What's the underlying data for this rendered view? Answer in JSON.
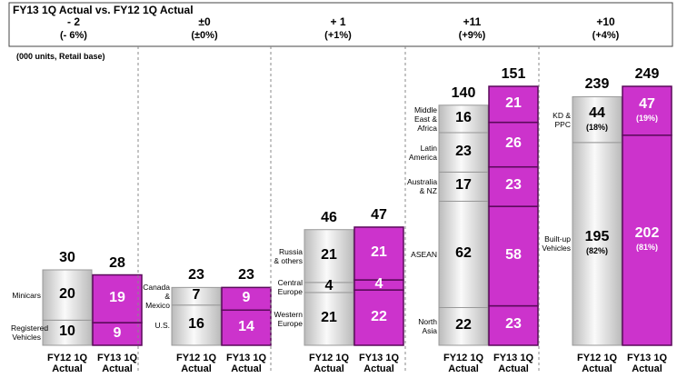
{
  "title": "FY13 1Q Actual vs. FY12 1Q Actual",
  "note": "(000 units, Retail base)",
  "chart_data": [
    {
      "type": "bar",
      "stacked": true,
      "change": "- 2",
      "change_pct": "(- 6%)",
      "ylim": [
        0,
        103
      ],
      "categories": [
        "FY12 1Q Actual",
        "FY13 1Q Actual"
      ],
      "colors": [
        "#d6d6d6",
        "#cc33cc"
      ],
      "totals": [
        30,
        28
      ],
      "series": [
        {
          "name": "Registered Vehicles",
          "values": [
            10,
            9
          ]
        },
        {
          "name": "Minicars",
          "values": [
            20,
            19
          ]
        }
      ]
    },
    {
      "type": "bar",
      "stacked": true,
      "change": "±0",
      "change_pct": "(±0%)",
      "ylim": [
        0,
        103
      ],
      "categories": [
        "FY12 1Q Actual",
        "FY13 1Q Actual"
      ],
      "colors": [
        "#d6d6d6",
        "#cc33cc"
      ],
      "totals": [
        23,
        23
      ],
      "series": [
        {
          "name": "U.S.",
          "values": [
            16,
            14
          ]
        },
        {
          "name": "Canada & Mexico",
          "values": [
            7,
            9
          ]
        }
      ]
    },
    {
      "type": "bar",
      "stacked": true,
      "change": "+ 1",
      "change_pct": "(+1%)",
      "ylim": [
        0,
        103
      ],
      "categories": [
        "FY12 1Q Actual",
        "FY13 1Q Actual"
      ],
      "colors": [
        "#d6d6d6",
        "#cc33cc"
      ],
      "totals": [
        46,
        47
      ],
      "series": [
        {
          "name": "Western Europe",
          "values": [
            21,
            22
          ]
        },
        {
          "name": "Central Europe",
          "values": [
            4,
            4
          ]
        },
        {
          "name": "Russia & others",
          "values": [
            21,
            21
          ]
        }
      ]
    },
    {
      "type": "bar",
      "stacked": true,
      "change": "+11",
      "change_pct": "(+9%)",
      "ylim": [
        0,
        151
      ],
      "categories": [
        "FY12 1Q Actual",
        "FY13 1Q Actual"
      ],
      "colors": [
        "#d6d6d6",
        "#cc33cc"
      ],
      "totals": [
        140,
        151
      ],
      "series": [
        {
          "name": "North Asia",
          "values": [
            22,
            23
          ]
        },
        {
          "name": "ASEAN",
          "values": [
            62,
            58
          ]
        },
        {
          "name": "Australia & NZ",
          "values": [
            17,
            23
          ]
        },
        {
          "name": "Latin America",
          "values": [
            23,
            26
          ]
        },
        {
          "name": "Middle East & Africa",
          "values": [
            16,
            21
          ]
        }
      ]
    },
    {
      "type": "bar",
      "stacked": true,
      "change": "+10",
      "change_pct": "(+4%)",
      "ylim": [
        0,
        249
      ],
      "categories": [
        "FY12 1Q Actual",
        "FY13 1Q Actual"
      ],
      "colors": [
        "#d6d6d6",
        "#cc33cc"
      ],
      "totals": [
        239,
        249
      ],
      "series": [
        {
          "name": "Built-up Vehicles",
          "values": [
            195,
            202
          ],
          "share_labels": [
            "(82%)",
            "(81%)"
          ]
        },
        {
          "name": "KD & PPC",
          "values": [
            44,
            47
          ],
          "share_labels": [
            "(18%)",
            "(19%)"
          ]
        }
      ]
    }
  ]
}
